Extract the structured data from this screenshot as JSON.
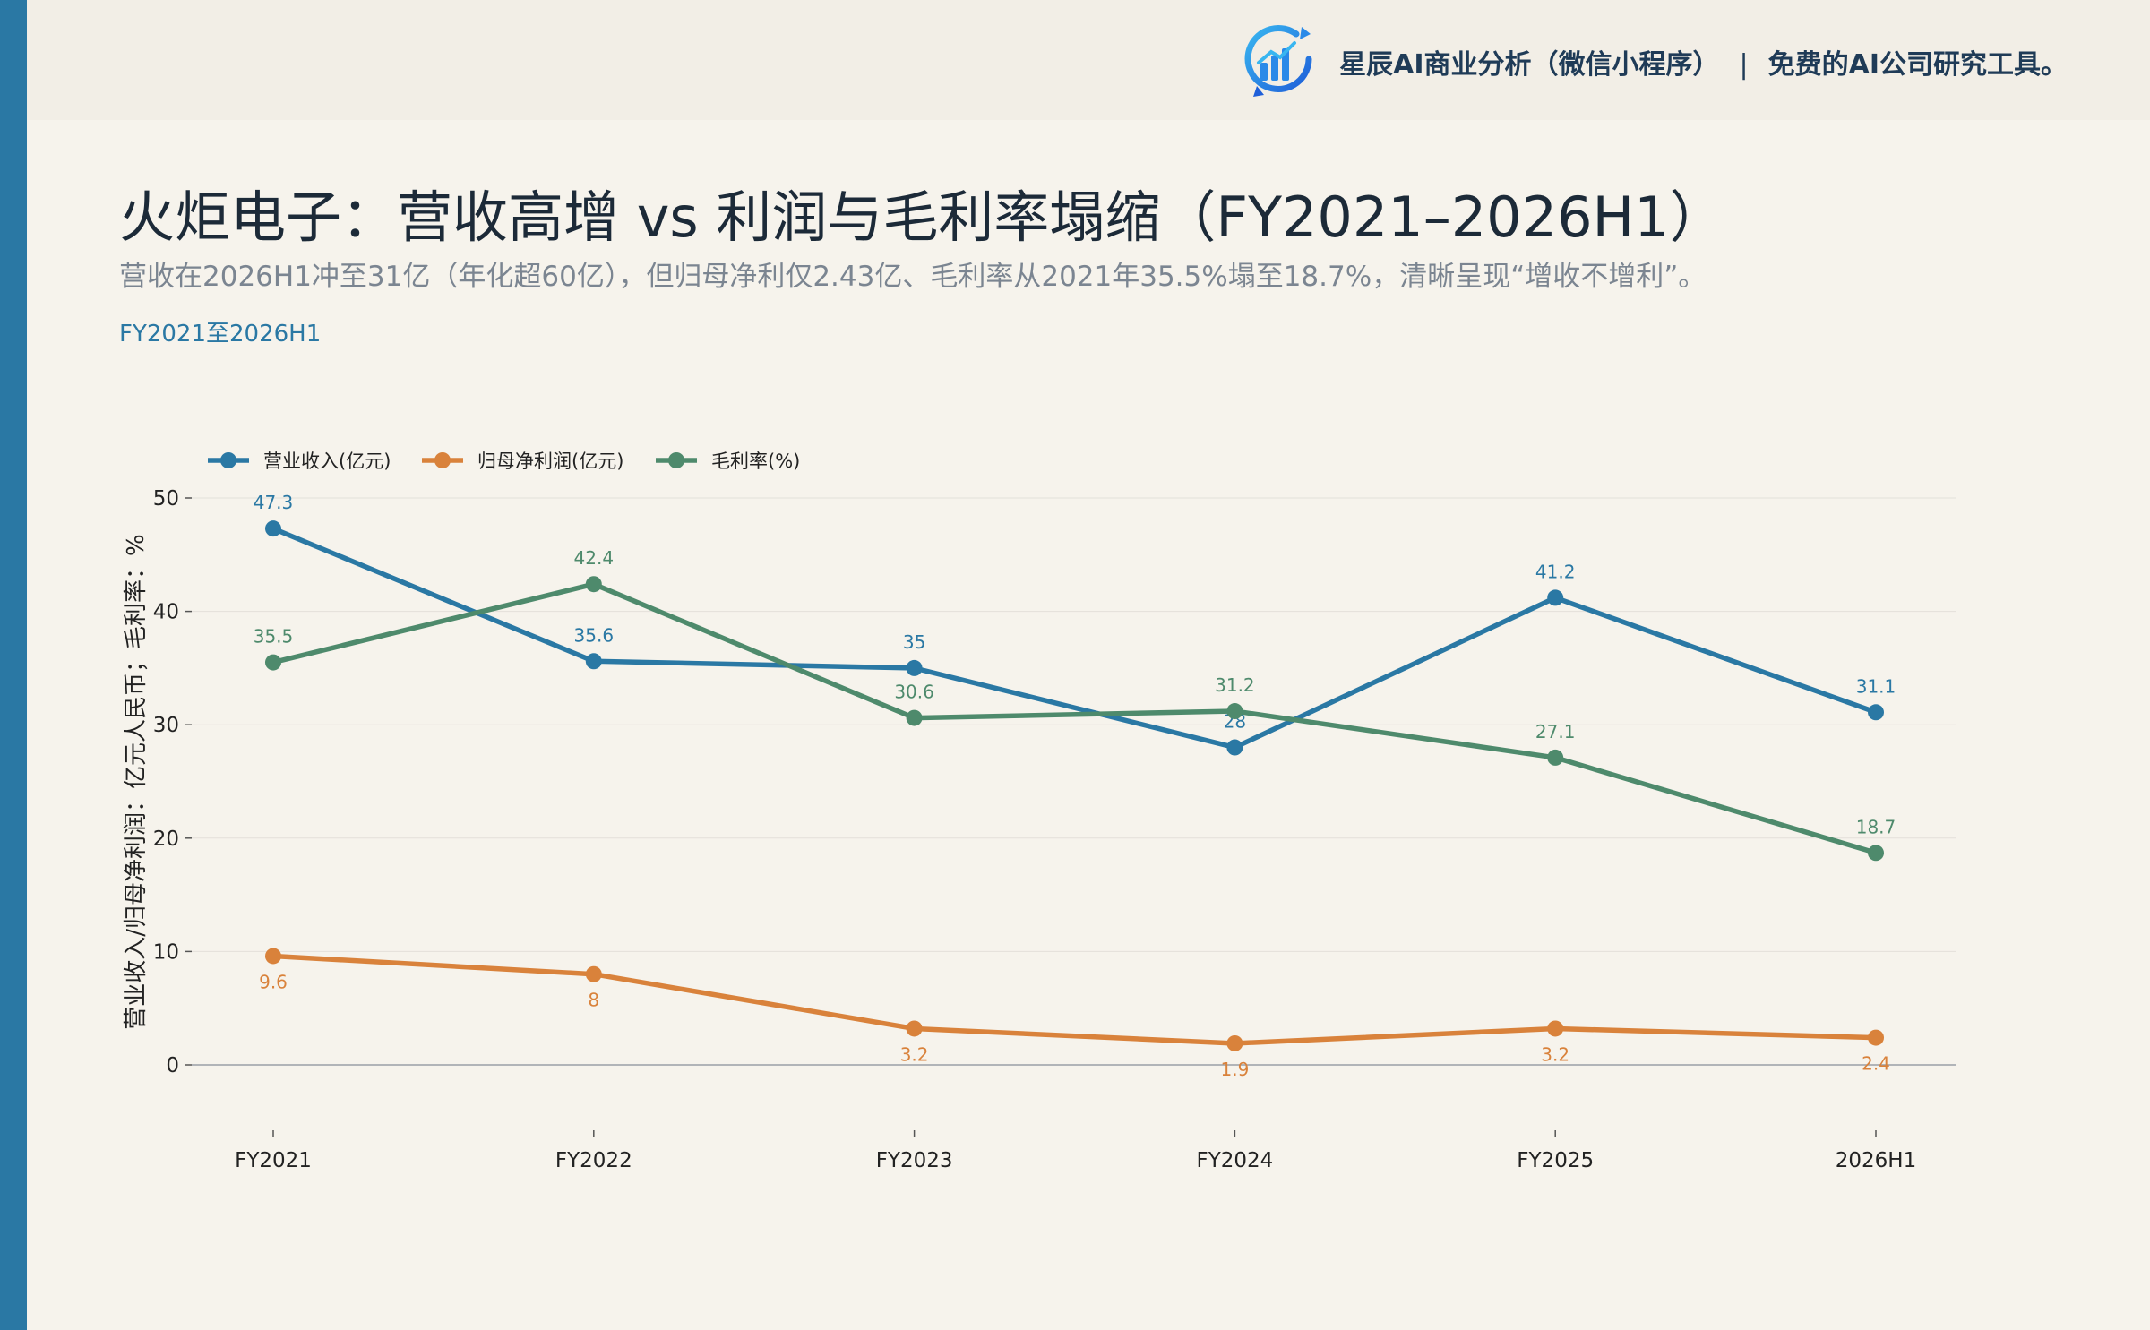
{
  "brand": {
    "name": "星辰AI商业分析（微信小程序）",
    "separator": "|",
    "tagline": "免费的AI公司研究工具。"
  },
  "header": {
    "title": "火炬电子：营收高增 vs 利润与毛利率塌缩（FY2021–2026H1）",
    "subtitle": "营收在2026H1冲至31亿（年化超60亿），但归母净利仅2.43亿、毛利率从2021年35.5%塌至18.7%，清晰呈现“增收不增利”。",
    "range_note": "FY2021至2026H1"
  },
  "colors": {
    "background": "#f6f3ec",
    "accent_bar": "#2a78a4",
    "revenue": "#2a78a4",
    "net_profit": "#d9823b",
    "gross_margin": "#4e8a6c"
  },
  "chart_data": {
    "type": "line",
    "categories": [
      "FY2021",
      "FY2022",
      "FY2023",
      "FY2024",
      "FY2025",
      "2026H1"
    ],
    "series": [
      {
        "name": "营业收入(亿元)",
        "values": [
          47.3,
          35.6,
          35,
          28,
          41.2,
          31.1
        ],
        "labels": [
          "47.3",
          "35.6",
          "35",
          "28",
          "41.2",
          "31.1"
        ],
        "color": "#2a78a4",
        "label_position": "above"
      },
      {
        "name": "归母净利润(亿元)",
        "values": [
          9.6,
          8,
          3.2,
          1.9,
          3.2,
          2.4
        ],
        "labels": [
          "9.6",
          "8",
          "3.2",
          "1.9",
          "3.2",
          "2.4"
        ],
        "color": "#d9823b",
        "label_position": "below"
      },
      {
        "name": "毛利率(%)",
        "values": [
          35.5,
          42.4,
          30.6,
          31.2,
          27.1,
          18.7
        ],
        "labels": [
          "35.5",
          "42.4",
          "30.6",
          "31.2",
          "27.1",
          "18.7"
        ],
        "color": "#4e8a6c",
        "label_position": "above"
      }
    ],
    "ylabel": "营业收入/归母净利润：亿元人民币；毛利率：%",
    "xlabel": "",
    "ylim": [
      0,
      50
    ],
    "yticks": [
      "0",
      "10",
      "20",
      "30",
      "40",
      "50"
    ],
    "grid": "horizontal",
    "legend": "top-left"
  }
}
